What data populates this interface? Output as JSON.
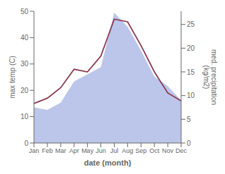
{
  "chart_data": {
    "type": "line",
    "categories": [
      "Jan",
      "Feb",
      "Mar",
      "Apr",
      "May",
      "Jun",
      "Jul",
      "Aug",
      "Sep",
      "Oct",
      "Nov",
      "Dec"
    ],
    "series": [
      {
        "type": "area",
        "color": "#b0bce8",
        "axis": "y2",
        "values": [
          7.5,
          7.0,
          8.5,
          13.0,
          14.5,
          16.0,
          27.5,
          24.5,
          19.5,
          14.0,
          12.0,
          9.0
        ]
      },
      {
        "type": "line",
        "color": "#8b3a50",
        "values": [
          15,
          17,
          21,
          28,
          27,
          33,
          47,
          46,
          37,
          27,
          19,
          16
        ]
      }
    ],
    "xlabel": "date (month)",
    "ylabel": "max temp (C)",
    "y2label": "med. precipitation\n(kg/m2)",
    "ylim": [
      0,
      50
    ],
    "yticks": [
      0,
      10,
      20,
      30,
      40,
      50
    ],
    "y2lim": [
      0,
      27.78
    ],
    "y2ticks": [
      0,
      5,
      10,
      15,
      20,
      25
    ],
    "grid": false
  }
}
